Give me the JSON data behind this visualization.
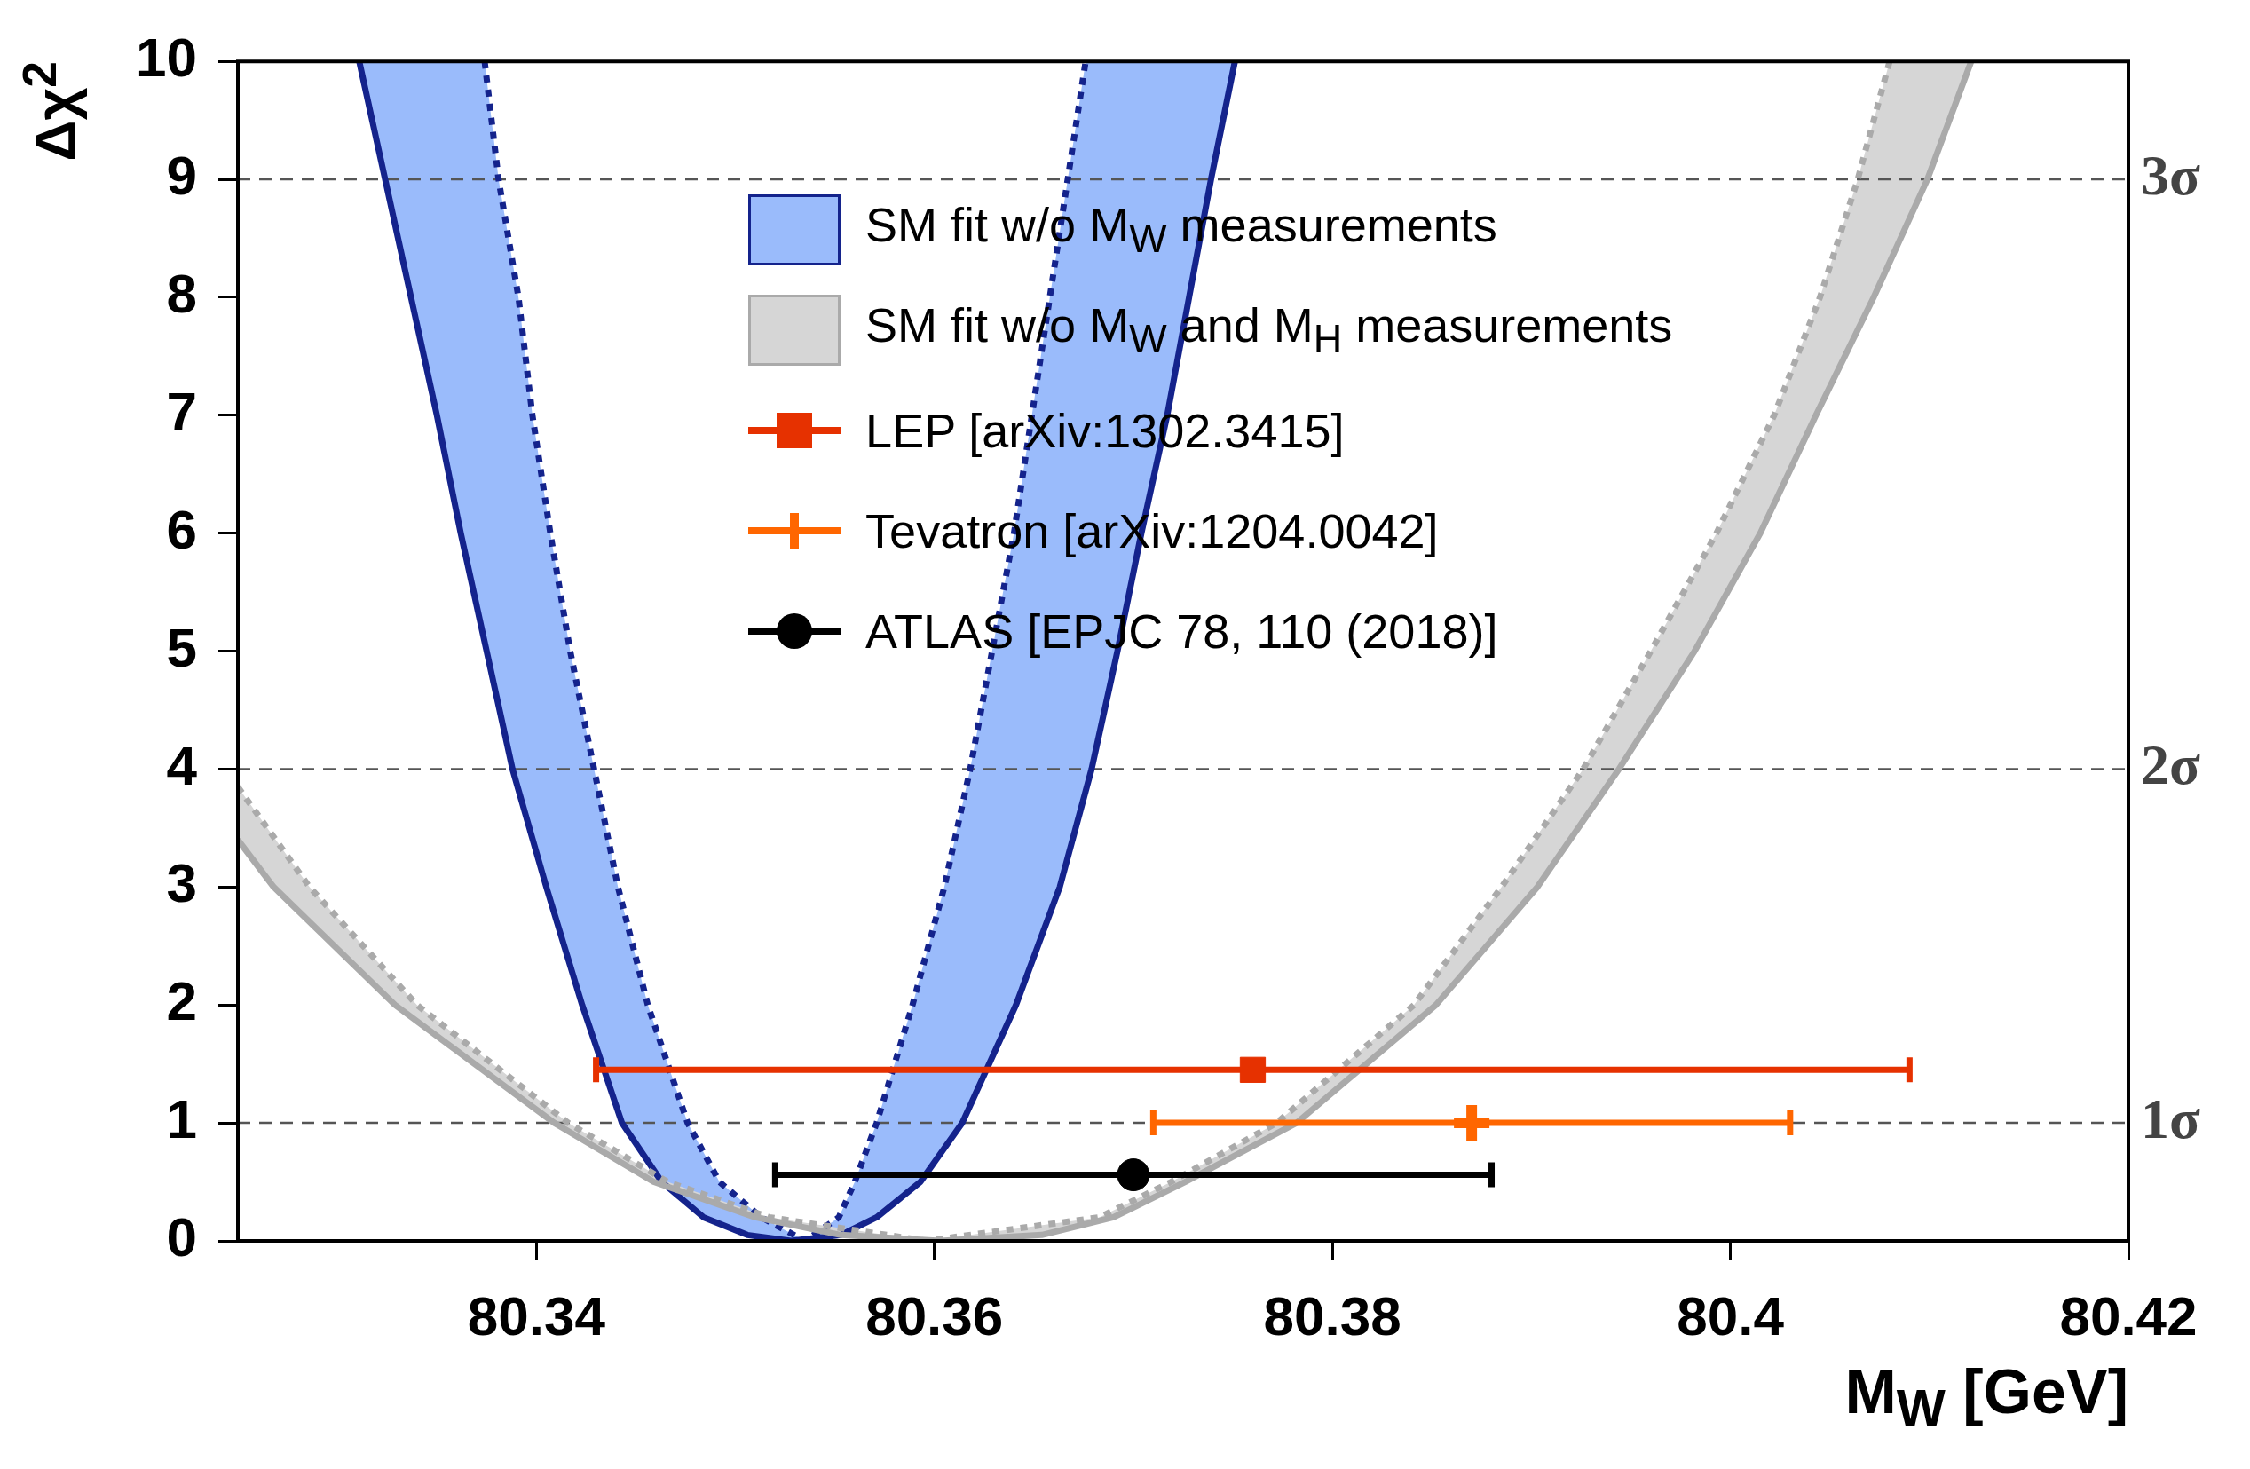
{
  "chart_data": {
    "type": "line",
    "xlabel": "M$_{W}$ [GeV]",
    "ylabel": "Δχ$^{2}$",
    "xlim": [
      80.325,
      80.42
    ],
    "xticks": [
      80.34,
      80.36,
      80.38,
      80.4,
      80.42
    ],
    "ylim": [
      0,
      10
    ],
    "yticks": [
      0,
      1,
      2,
      3,
      4,
      5,
      6,
      7,
      8,
      9,
      10
    ],
    "legend": "top",
    "ref_lines": [
      {
        "axis": "y",
        "value": 1,
        "label": "1σ",
        "color": "#555555",
        "line_style": "dashed"
      },
      {
        "axis": "y",
        "value": 4,
        "label": "2σ",
        "color": "#555555",
        "line_style": "dashed"
      },
      {
        "axis": "y",
        "value": 9,
        "label": "3σ",
        "color": "#555555",
        "line_style": "dashed"
      }
    ],
    "series": [
      {
        "name": "SM fit w/o M$_{W}$ measurements",
        "type": "area",
        "color": "#9abbfb"
      },
      {
        "type": "line",
        "color": "#14238c",
        "line_style": "solid",
        "x": [
          80.3311,
          80.3324,
          80.3337,
          80.335,
          80.3362,
          80.3375,
          80.3388,
          80.3405,
          80.3423,
          80.3443,
          80.3463,
          80.3484,
          80.3506,
          80.3528,
          80.3553,
          80.3571,
          80.3593,
          80.3614,
          80.3641,
          80.3663,
          80.3679,
          80.3692,
          80.3704,
          80.3717,
          80.3728,
          80.3739,
          80.3751
        ],
        "values": [
          10,
          9,
          8,
          7,
          6,
          5,
          4,
          3,
          2,
          1,
          0.5,
          0.2,
          0.05,
          0,
          0.05,
          0.2,
          0.5,
          1,
          2,
          3,
          4,
          5,
          6,
          7,
          8,
          9,
          10
        ]
      },
      {
        "type": "line",
        "color": "#14238c",
        "line_style": "dotted",
        "x": [
          80.3374,
          80.3381,
          80.3391,
          80.3398,
          80.3407,
          80.3417,
          80.3429,
          80.3441,
          80.3456,
          80.3476,
          80.3492,
          80.3513,
          80.3535,
          80.3552,
          80.356,
          80.3571,
          80.3589,
          80.3605,
          80.3618,
          80.3629,
          80.364,
          80.3649,
          80.3658,
          80.3667,
          80.3676
        ],
        "values": [
          10,
          9,
          8,
          7,
          6,
          5,
          4,
          3,
          2,
          1,
          0.5,
          0.2,
          0,
          0.2,
          0.5,
          1,
          2,
          3,
          4,
          5,
          6,
          7,
          8,
          9,
          10
        ]
      },
      {
        "name": "SM fit w/o M$_{W}$ and M$_{H}$ measurements",
        "type": "area",
        "color": "#d6d6d6"
      },
      {
        "type": "line",
        "color": "#aaaaaa",
        "line_style": "solid",
        "x": [
          80.325,
          80.3268,
          80.3329,
          80.3409,
          80.3459,
          80.351,
          80.3553,
          80.3603,
          80.3654,
          80.369,
          80.3726,
          80.3782,
          80.3852,
          80.3903,
          80.3944,
          80.3982,
          80.4015,
          80.4043,
          80.4072,
          80.4099,
          80.4121
        ],
        "values": [
          3.4,
          3,
          2,
          1,
          0.5,
          0.2,
          0.05,
          0,
          0.05,
          0.2,
          0.5,
          1,
          2,
          3,
          4,
          5,
          6,
          7,
          8,
          9,
          10
        ]
      },
      {
        "type": "line",
        "color": "#aaaaaa",
        "line_style": "dotted",
        "x": [
          80.325,
          80.3286,
          80.334,
          80.3416,
          80.3466,
          80.3517,
          80.3596,
          80.3683,
          80.3719,
          80.3772,
          80.3841,
          80.3885,
          80.3926,
          80.396,
          80.3993,
          80.4022,
          80.4045,
          80.4064,
          80.408
        ],
        "values": [
          3.85,
          3,
          2,
          1,
          0.5,
          0.2,
          0,
          0.2,
          0.5,
          1,
          2,
          3,
          4,
          5,
          6,
          7,
          8,
          9,
          10
        ]
      },
      {
        "name": "LEP [arXiv:1302.3415]",
        "type": "scatter",
        "marker": "square",
        "color": "#e63100",
        "x": [
          80.376
        ],
        "values": [
          1.45
        ],
        "xerrors": [
          0.033
        ]
      },
      {
        "name": "Tevatron [arXiv:1204.0042]",
        "type": "scatter",
        "marker": "cross",
        "color": "#ff6600",
        "x": [
          80.387
        ],
        "values": [
          1
        ],
        "xerrors": [
          0.016
        ]
      },
      {
        "name": "ATLAS [EPJC 78, 110 (2018)]",
        "type": "scatter",
        "marker": "circle",
        "color": "#000000",
        "x": [
          80.37
        ],
        "values": [
          0.56
        ],
        "xerrors": [
          0.018
        ]
      }
    ]
  }
}
